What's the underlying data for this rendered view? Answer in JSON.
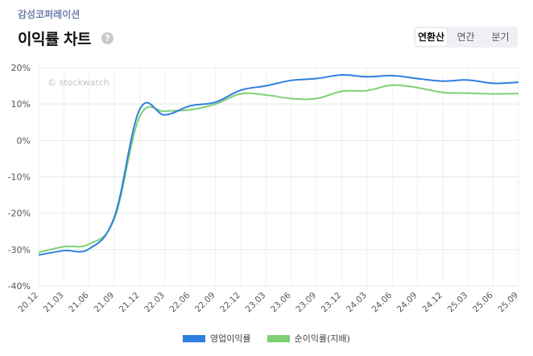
{
  "header": {
    "company": "감성코퍼레이션",
    "title": "이익률 차트",
    "help_symbol": "?"
  },
  "tabs": [
    {
      "label": "연환산",
      "active": true
    },
    {
      "label": "연간",
      "active": false
    },
    {
      "label": "분기",
      "active": false
    }
  ],
  "chart_data": {
    "type": "line",
    "watermark": "© stockwatch",
    "x": [
      "20.12",
      "21.03",
      "21.06",
      "21.09",
      "21.12",
      "22.03",
      "22.06",
      "22.09",
      "22.12",
      "23.03",
      "23.06",
      "23.09",
      "23.12",
      "24.03",
      "24.06",
      "24.09",
      "24.12",
      "25.03",
      "25.06",
      "25.09"
    ],
    "y_ticks": [
      "20%",
      "10%",
      "0%",
      "-10%",
      "-20%",
      "-30%",
      "-40%"
    ],
    "ylim": [
      -40,
      20
    ],
    "y_tick_values": [
      20,
      10,
      0,
      -10,
      -20,
      -30,
      -40
    ],
    "series": [
      {
        "name": "영업이익률",
        "color": "#2f7fe0",
        "values": [
          -31.5,
          -30.3,
          -29.8,
          -21.0,
          8.5,
          7.0,
          9.5,
          10.5,
          13.8,
          15.0,
          16.5,
          17.0,
          18.0,
          17.5,
          17.8,
          17.0,
          16.3,
          16.6,
          15.7,
          16.0
        ]
      },
      {
        "name": "순이익률(지배)",
        "color": "#7ed075",
        "values": [
          -30.8,
          -29.2,
          -28.5,
          -21.5,
          6.5,
          8.0,
          8.4,
          10.0,
          12.8,
          12.5,
          11.5,
          11.5,
          13.5,
          13.7,
          15.2,
          14.5,
          13.2,
          13.0,
          12.8,
          12.9
        ]
      }
    ]
  }
}
